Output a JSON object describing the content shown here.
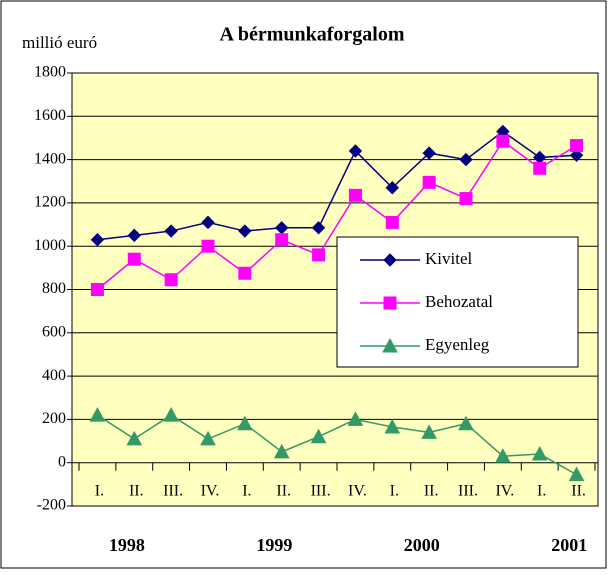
{
  "chart_data": {
    "type": "line",
    "title": "A bérmunkaforgalom",
    "y_label": "millió euró",
    "categories": [
      "I.",
      "II.",
      "III.",
      "IV.",
      "I.",
      "II.",
      "III.",
      "IV.",
      "I.",
      "II.",
      "III.",
      "IV.",
      "I.",
      "II."
    ],
    "years": [
      "1998",
      "1999",
      "2000",
      "2001"
    ],
    "series": [
      {
        "name": "Kivitel",
        "color": "#000080",
        "marker": "diamond",
        "values": [
          1030,
          1050,
          1070,
          1110,
          1070,
          1085,
          1085,
          1440,
          1270,
          1430,
          1400,
          1530,
          1410,
          1420
        ]
      },
      {
        "name": "Behozatal",
        "color": "#ff00ff",
        "marker": "square",
        "values": [
          800,
          940,
          845,
          1000,
          875,
          1030,
          960,
          1235,
          1110,
          1295,
          1220,
          1485,
          1360,
          1465
        ]
      },
      {
        "name": "Egyenleg",
        "color": "#339966",
        "marker": "triangle",
        "values": [
          220,
          110,
          220,
          110,
          180,
          50,
          120,
          200,
          165,
          140,
          180,
          30,
          40,
          -55
        ]
      }
    ],
    "ylim": [
      -200,
      1800
    ],
    "yticks": [
      -200,
      0,
      200,
      400,
      600,
      800,
      1000,
      1200,
      1400,
      1600,
      1800
    ],
    "grid": true,
    "plot_background": "#ffffc0"
  }
}
